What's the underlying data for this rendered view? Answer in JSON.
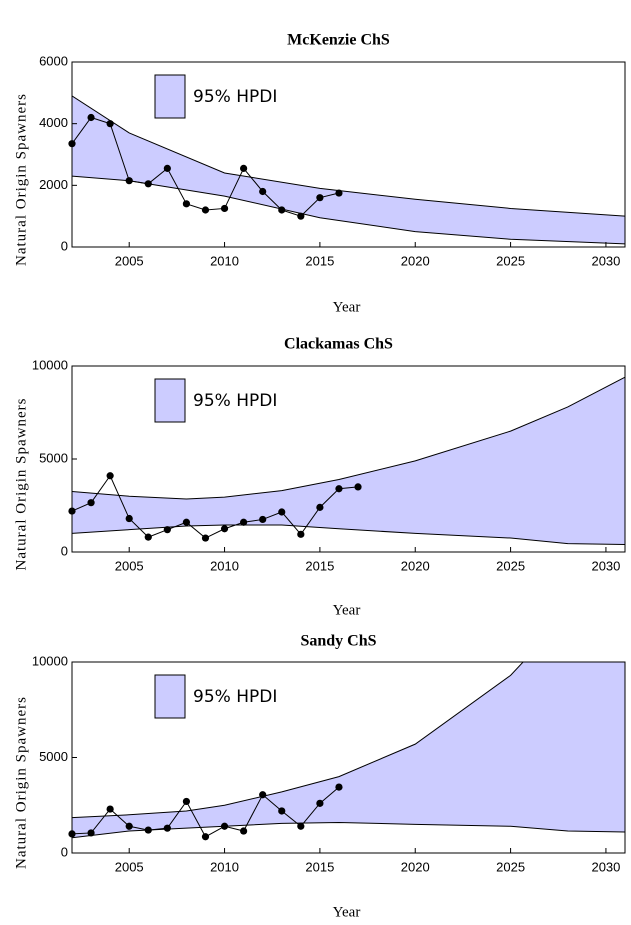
{
  "chart_data": [
    {
      "type": "line",
      "title": "McKenzie ChS",
      "xlabel": "Year",
      "ylabel": "Natural Origin Spawners",
      "xlim": [
        2002,
        2031
      ],
      "xticks": [
        2005,
        2010,
        2015,
        2020,
        2025,
        2030
      ],
      "ylim": [
        0,
        6000
      ],
      "yticks": [
        0,
        2000,
        4000,
        6000
      ],
      "band": {
        "name": "95% HPDI",
        "color": "#ccccff",
        "x": [
          2002,
          2005,
          2010,
          2015,
          2020,
          2025,
          2031
        ],
        "upper": [
          4900,
          3700,
          2400,
          1900,
          1550,
          1250,
          1000
        ],
        "lower": [
          2300,
          2150,
          1650,
          950,
          500,
          250,
          100
        ]
      },
      "series": [
        {
          "color": "#000000",
          "x": [
            2002,
            2003,
            2004,
            2005,
            2006,
            2007,
            2008,
            2009,
            2010,
            2011,
            2012,
            2013,
            2014,
            2015,
            2016
          ],
          "values": [
            3350,
            4200,
            4000,
            2150,
            2050,
            2550,
            1400,
            1200,
            1250,
            2550,
            1800,
            1200,
            1000,
            1600,
            1750
          ]
        }
      ]
    },
    {
      "type": "line",
      "title": "Clackamas ChS",
      "xlabel": "Year",
      "ylabel": "Natural Origin Spawners",
      "xlim": [
        2002,
        2031
      ],
      "xticks": [
        2005,
        2010,
        2015,
        2020,
        2025,
        2030
      ],
      "ylim": [
        0,
        10000
      ],
      "yticks": [
        0,
        5000,
        10000
      ],
      "band": {
        "name": "95% HPDI",
        "color": "#ccccff",
        "x": [
          2002,
          2005,
          2008,
          2010,
          2013,
          2016,
          2020,
          2025,
          2028,
          2031
        ],
        "upper": [
          3250,
          3000,
          2850,
          2950,
          3300,
          3900,
          4900,
          6500,
          7800,
          9400
        ],
        "lower": [
          1000,
          1200,
          1400,
          1450,
          1450,
          1250,
          1000,
          750,
          450,
          400
        ]
      },
      "series": [
        {
          "color": "#000000",
          "x": [
            2002,
            2003,
            2004,
            2005,
            2006,
            2007,
            2008,
            2009,
            2010,
            2011,
            2012,
            2013,
            2014,
            2015,
            2016,
            2017
          ],
          "values": [
            2200,
            2650,
            4100,
            1800,
            800,
            1200,
            1600,
            750,
            1250,
            1600,
            1750,
            2150,
            950,
            2400,
            3400,
            3500
          ]
        }
      ]
    },
    {
      "type": "line",
      "title": "Sandy ChS",
      "xlabel": "Year",
      "ylabel": "Natural Origin Spawners",
      "xlim": [
        2002,
        2031
      ],
      "xticks": [
        2005,
        2010,
        2015,
        2020,
        2025,
        2030
      ],
      "ylim": [
        0,
        10000
      ],
      "yticks": [
        0,
        5000,
        10000
      ],
      "band": {
        "name": "95% HPDI",
        "color": "#ccccff",
        "x": [
          2002,
          2005,
          2008,
          2010,
          2013,
          2016,
          2020,
          2025,
          2028,
          2031
        ],
        "upper": [
          1850,
          2000,
          2200,
          2500,
          3200,
          4000,
          5700,
          9300,
          12500,
          15500
        ],
        "lower": [
          800,
          1150,
          1300,
          1400,
          1550,
          1600,
          1500,
          1400,
          1150,
          1100
        ]
      },
      "series": [
        {
          "color": "#000000",
          "x": [
            2002,
            2003,
            2004,
            2005,
            2006,
            2007,
            2008,
            2009,
            2010,
            2011,
            2012,
            2013,
            2014,
            2015,
            2016
          ],
          "values": [
            1000,
            1050,
            2300,
            1400,
            1200,
            1300,
            2700,
            850,
            1400,
            1150,
            3050,
            2200,
            1400,
            2600,
            3450
          ]
        }
      ]
    }
  ]
}
